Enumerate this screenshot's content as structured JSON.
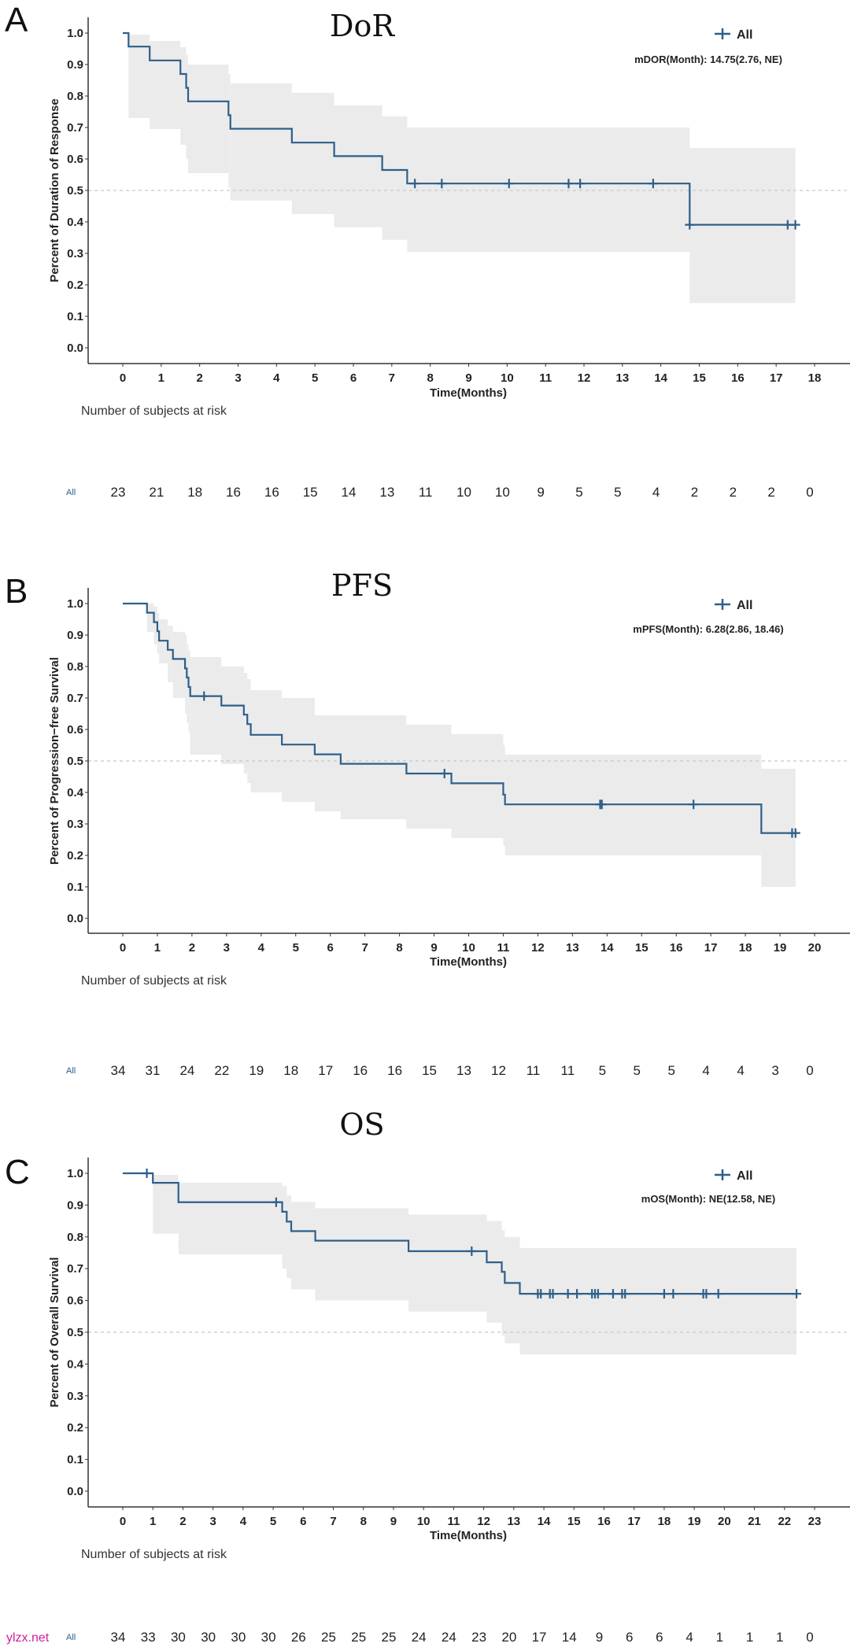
{
  "colors": {
    "curve": "#2e5f8a",
    "ci_band": "#ebebeb",
    "median_ref": "#c8c8c8",
    "watermark": "#d0209a"
  },
  "watermark": "ylzx.net",
  "chart_data": [
    {
      "type": "line",
      "subtype": "kaplan-meier-step",
      "panel": "A",
      "title": "DoR",
      "ylabel": "Percent of Duration of Response",
      "xlabel": "Time(Months)",
      "ylim": [
        0,
        1
      ],
      "yticks": [
        "0.0",
        "0.1",
        "0.2",
        "0.3",
        "0.4",
        "0.5",
        "0.6",
        "0.7",
        "0.8",
        "0.9",
        "1.0"
      ],
      "xlim": [
        0,
        18
      ],
      "xticks": [
        "0",
        "1",
        "2",
        "3",
        "4",
        "5",
        "6",
        "7",
        "8",
        "9",
        "10",
        "11",
        "12",
        "13",
        "14",
        "15",
        "16",
        "17",
        "18"
      ],
      "reference_line": 0.5,
      "legend": {
        "label": "All",
        "position": "top-right",
        "icon": "plus-icon"
      },
      "median_text": "mDOR(Month): 14.75(2.76, NE)",
      "curve": {
        "t": [
          0,
          0.15,
          0.7,
          1.5,
          1.65,
          1.7,
          2.75,
          2.8,
          4.4,
          5.5,
          6.75,
          7.4,
          14.75
        ],
        "s": [
          1,
          0.957,
          0.913,
          0.87,
          0.826,
          0.783,
          0.739,
          0.696,
          0.652,
          0.609,
          0.565,
          0.522,
          0.391
        ],
        "upper": [
          1,
          0.995,
          0.975,
          0.955,
          0.93,
          0.9,
          0.87,
          0.84,
          0.81,
          0.77,
          0.735,
          0.7,
          0.635
        ],
        "lower": [
          1,
          0.73,
          0.695,
          0.645,
          0.6,
          0.555,
          0.51,
          0.468,
          0.425,
          0.383,
          0.343,
          0.305,
          0.142
        ],
        "end": 17.5
      },
      "censors": [
        [
          7.6,
          0.522
        ],
        [
          8.3,
          0.522
        ],
        [
          10.05,
          0.522
        ],
        [
          11.6,
          0.522
        ],
        [
          11.9,
          0.522
        ],
        [
          13.8,
          0.522
        ],
        [
          14.75,
          0.391
        ],
        [
          17.3,
          0.391
        ],
        [
          17.5,
          0.391
        ]
      ],
      "risk_table": {
        "heading": "Number of subjects at risk",
        "label": "All",
        "values": [
          "23",
          "21",
          "18",
          "16",
          "16",
          "15",
          "14",
          "13",
          "11",
          "10",
          "10",
          "9",
          "5",
          "5",
          "4",
          "2",
          "2",
          "2",
          "0"
        ]
      }
    },
    {
      "type": "line",
      "subtype": "kaplan-meier-step",
      "panel": "B",
      "title": "PFS",
      "ylabel": "Percent of Progression−free Survival",
      "xlabel": "Time(Months)",
      "ylim": [
        0,
        1
      ],
      "yticks": [
        "0.0",
        "0.1",
        "0.2",
        "0.3",
        "0.4",
        "0.5",
        "0.6",
        "0.7",
        "0.8",
        "0.9",
        "1.0"
      ],
      "xlim": [
        0,
        20
      ],
      "xticks": [
        "0",
        "1",
        "2",
        "3",
        "4",
        "5",
        "6",
        "7",
        "8",
        "9",
        "10",
        "11",
        "12",
        "13",
        "14",
        "15",
        "16",
        "17",
        "18",
        "19",
        "20"
      ],
      "reference_line": 0.5,
      "legend": {
        "label": "All",
        "position": "top-right",
        "icon": "plus-icon"
      },
      "median_text": "mPFS(Month): 6.28(2.86, 18.46)",
      "curve": {
        "t": [
          0,
          0.7,
          0.9,
          1.0,
          1.05,
          1.3,
          1.45,
          1.8,
          1.85,
          1.9,
          1.95,
          2.85,
          3.5,
          3.6,
          3.7,
          4.6,
          5.55,
          6.3,
          8.2,
          9.5,
          11.0,
          11.05,
          18.46
        ],
        "s": [
          1,
          0.971,
          0.941,
          0.912,
          0.882,
          0.853,
          0.824,
          0.794,
          0.765,
          0.735,
          0.706,
          0.676,
          0.647,
          0.617,
          0.583,
          0.552,
          0.521,
          0.491,
          0.46,
          0.429,
          0.393,
          0.362,
          0.271
        ],
        "upper": [
          1,
          1.0,
          0.99,
          0.97,
          0.95,
          0.93,
          0.91,
          0.9,
          0.87,
          0.85,
          0.83,
          0.8,
          0.78,
          0.76,
          0.725,
          0.7,
          0.645,
          0.645,
          0.615,
          0.585,
          0.55,
          0.52,
          0.475
        ],
        "lower": [
          1,
          0.91,
          0.87,
          0.84,
          0.81,
          0.75,
          0.7,
          0.65,
          0.62,
          0.59,
          0.52,
          0.49,
          0.46,
          0.43,
          0.4,
          0.37,
          0.34,
          0.315,
          0.285,
          0.255,
          0.23,
          0.2,
          0.1
        ],
        "end": 19.45
      },
      "censors": [
        [
          2.35,
          0.706
        ],
        [
          9.3,
          0.46
        ],
        [
          13.8,
          0.362
        ],
        [
          13.85,
          0.362
        ],
        [
          16.5,
          0.362
        ],
        [
          19.35,
          0.271
        ],
        [
          19.45,
          0.271
        ]
      ],
      "risk_table": {
        "heading": "Number of subjects at risk",
        "label": "All",
        "values": [
          "34",
          "31",
          "24",
          "22",
          "19",
          "18",
          "17",
          "16",
          "16",
          "15",
          "13",
          "12",
          "11",
          "11",
          "5",
          "5",
          "5",
          "4",
          "4",
          "3",
          "0"
        ]
      }
    },
    {
      "type": "line",
      "subtype": "kaplan-meier-step",
      "panel": "C",
      "title": "OS",
      "ylabel": "Percent of Overall Survival",
      "xlabel": "Time(Months)",
      "ylim": [
        0,
        1
      ],
      "yticks": [
        "0.0",
        "0.1",
        "0.2",
        "0.3",
        "0.4",
        "0.5",
        "0.6",
        "0.7",
        "0.8",
        "0.9",
        "1.0"
      ],
      "xlim": [
        0,
        23
      ],
      "xticks": [
        "0",
        "1",
        "2",
        "3",
        "4",
        "5",
        "6",
        "7",
        "8",
        "9",
        "10",
        "11",
        "12",
        "13",
        "14",
        "15",
        "16",
        "17",
        "18",
        "19",
        "20",
        "21",
        "22",
        "23"
      ],
      "reference_line": 0.5,
      "legend": {
        "label": "All",
        "position": "top-right",
        "icon": "plus-icon"
      },
      "median_text": "mOS(Month): NE(12.58, NE)",
      "curve": {
        "t": [
          0,
          1.0,
          1.85,
          5.3,
          5.45,
          5.6,
          6.4,
          9.5,
          12.1,
          12.6,
          12.7,
          13.2
        ],
        "s": [
          1,
          0.97,
          0.909,
          0.879,
          0.848,
          0.818,
          0.788,
          0.755,
          0.72,
          0.69,
          0.655,
          0.621
        ],
        "upper": [
          1,
          0.995,
          0.97,
          0.96,
          0.93,
          0.91,
          0.89,
          0.87,
          0.85,
          0.82,
          0.8,
          0.765
        ],
        "lower": [
          1,
          0.81,
          0.745,
          0.7,
          0.67,
          0.635,
          0.6,
          0.565,
          0.53,
          0.49,
          0.465,
          0.43
        ],
        "end": 22.4
      },
      "censors": [
        [
          0.8,
          1.0
        ],
        [
          5.1,
          0.909
        ],
        [
          11.6,
          0.755
        ],
        [
          13.8,
          0.621
        ],
        [
          13.9,
          0.621
        ],
        [
          14.2,
          0.621
        ],
        [
          14.3,
          0.621
        ],
        [
          14.8,
          0.621
        ],
        [
          15.1,
          0.621
        ],
        [
          15.6,
          0.621
        ],
        [
          15.7,
          0.621
        ],
        [
          15.8,
          0.621
        ],
        [
          16.3,
          0.621
        ],
        [
          16.6,
          0.621
        ],
        [
          16.7,
          0.621
        ],
        [
          18.0,
          0.621
        ],
        [
          18.3,
          0.621
        ],
        [
          19.3,
          0.621
        ],
        [
          19.4,
          0.621
        ],
        [
          19.8,
          0.621
        ],
        [
          22.4,
          0.621
        ]
      ],
      "risk_table": {
        "heading": "Number of subjects at risk",
        "label": "All",
        "values": [
          "34",
          "33",
          "30",
          "30",
          "30",
          "30",
          "26",
          "25",
          "25",
          "25",
          "24",
          "24",
          "23",
          "20",
          "17",
          "14",
          "9",
          "6",
          "6",
          "4",
          "1",
          "1",
          "1",
          "0"
        ]
      }
    }
  ]
}
